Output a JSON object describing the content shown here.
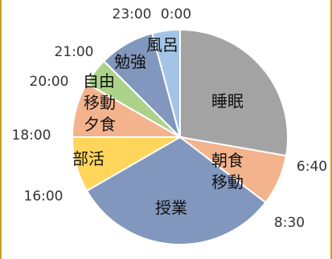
{
  "chart_data": {
    "type": "pie",
    "title": "",
    "unit": "time of day",
    "slices": [
      {
        "label": "睡眠",
        "from": "0:00",
        "to": "6:40",
        "color": "#a3a3a3"
      },
      {
        "label": "朝食\n移動",
        "from": "6:40",
        "to": "8:30",
        "color": "#f3b38d"
      },
      {
        "label": "授業",
        "from": "8:30",
        "to": "16:00",
        "color": "#8297bd"
      },
      {
        "label": "部活",
        "from": "16:00",
        "to": "18:00",
        "color": "#ffd55c"
      },
      {
        "label": "移動\n夕食",
        "from": "18:00",
        "to": "20:00",
        "color": "#f3b38d"
      },
      {
        "label": "自由",
        "from": "20:00",
        "to": "21:00",
        "color": "#acd28a"
      },
      {
        "label": "勉強",
        "from": "21:00",
        "to": "23:00",
        "color": "#8297bd"
      },
      {
        "label": "風呂",
        "from": "23:00",
        "to": "0:00",
        "color": "#a3c4e6"
      }
    ],
    "tick_labels": [
      "0:00",
      "6:40",
      "8:30",
      "16:00",
      "18:00",
      "20:00",
      "21:00",
      "23:00"
    ]
  },
  "colors": {
    "frame_border": "#c9a227",
    "slice_border": "#ffffff"
  }
}
